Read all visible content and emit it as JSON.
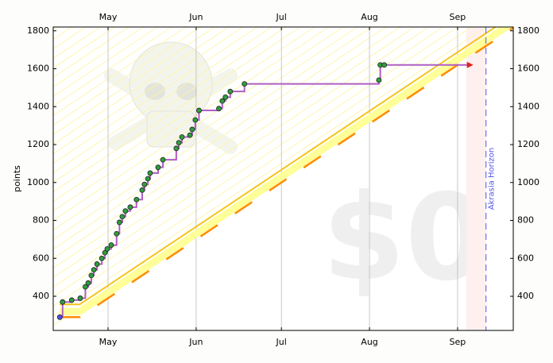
{
  "chart_data": {
    "type": "line",
    "ylabel": "points",
    "x": [
      -17,
      -16,
      -12.8,
      -9.8,
      -8,
      -7,
      -5.9,
      -5,
      -3.9,
      -2.2,
      -1.1,
      -0.3,
      1.1,
      3,
      4,
      5,
      6.1,
      7.8,
      10,
      12,
      12.8,
      14,
      14.8,
      17.6,
      19.3,
      24,
      24.9,
      26,
      28.8,
      29.6,
      30.7,
      32,
      39,
      40.2,
      41.3,
      43,
      48,
      95.3,
      95.8,
      97.2
    ],
    "values": [
      290,
      370,
      380,
      390,
      450,
      470,
      510,
      540,
      570,
      600,
      630,
      650,
      670,
      730,
      790,
      820,
      850,
      870,
      910,
      960,
      990,
      1020,
      1050,
      1080,
      1120,
      1180,
      1210,
      1240,
      1250,
      1280,
      1330,
      1380,
      1390,
      1430,
      1450,
      1480,
      1520,
      1540,
      1620,
      1620
    ],
    "line_color": "#b05fc4",
    "point_color": "#2e9e3e",
    "start_color": "#5050e0",
    "road": {
      "x": [
        -17,
        -10,
        142.6
      ],
      "values": [
        290,
        290,
        1816
      ],
      "color": "#ff8c00",
      "edge_color": "#f5c518",
      "band_color": "#ffff99"
    },
    "horizon": {
      "x": 133,
      "label": "Akrasia Horizon",
      "color": "#5555ee"
    },
    "watermark": "$0",
    "xlim": [
      -19.3,
      142.6
    ],
    "xticks": [
      {
        "value": 0,
        "label": "May"
      },
      {
        "value": 31,
        "label": "Jun"
      },
      {
        "value": 61,
        "label": "Jul"
      },
      {
        "value": 92,
        "label": "Aug"
      },
      {
        "value": 123,
        "label": "Sep"
      }
    ],
    "ylim": [
      220,
      1820
    ],
    "yticks": [
      400,
      600,
      800,
      1000,
      1200,
      1400,
      1600,
      1800
    ],
    "grid": true
  }
}
